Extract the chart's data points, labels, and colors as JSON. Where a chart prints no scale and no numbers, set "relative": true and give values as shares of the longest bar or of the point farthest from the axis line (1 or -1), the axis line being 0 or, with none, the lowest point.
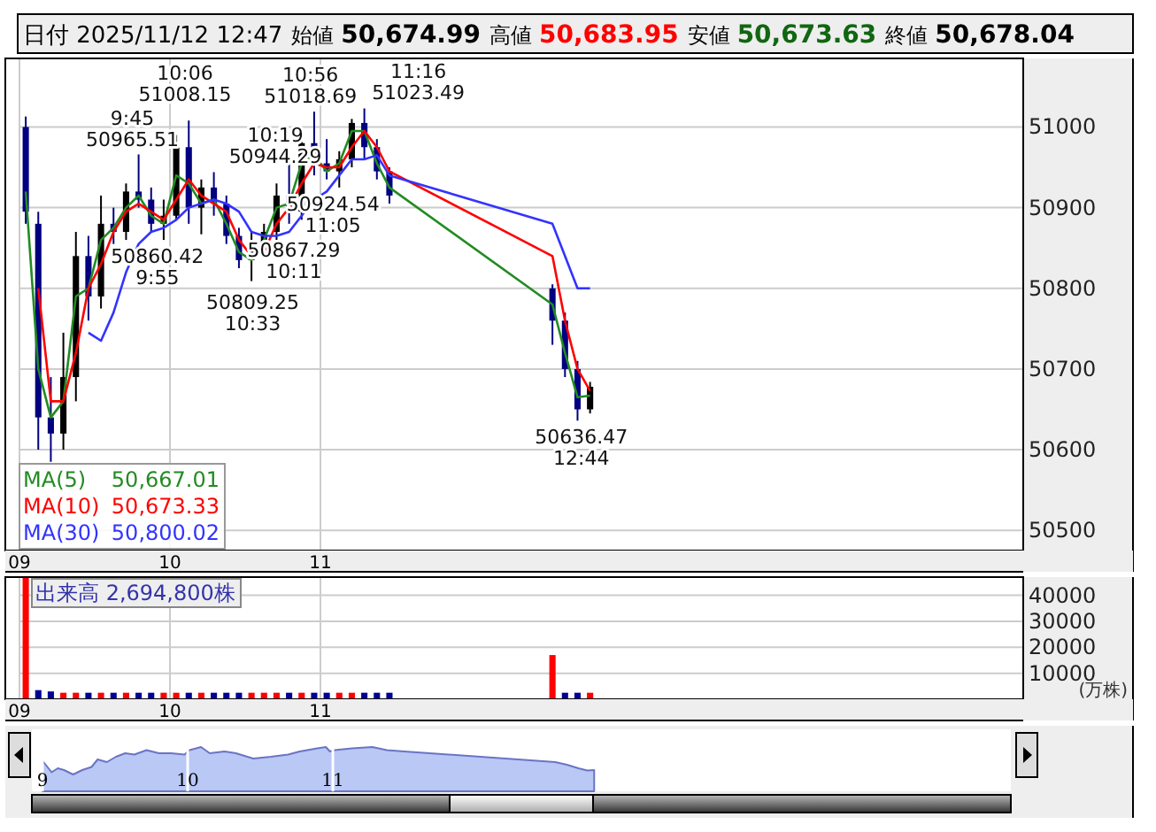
{
  "chart_data": [
    {
      "type": "candlestick",
      "title": "日付 2025/11/12 12:47 始値 50,674.99 高値 50,683.95 安値 50,673.63 終値 50,678.04",
      "x": [
        9.0417,
        9.125,
        9.2083,
        9.2917,
        9.375,
        9.4583,
        9.5417,
        9.625,
        9.7083,
        9.7917,
        9.875,
        9.9583,
        10.0417,
        10.125,
        10.2083,
        10.2917,
        10.375,
        10.4583,
        10.5417,
        10.625,
        10.7083,
        10.7917,
        10.875,
        10.9583,
        11.0417,
        11.125,
        11.2083,
        11.2917,
        11.375,
        11.4583,
        12.5417,
        12.625,
        12.7083,
        12.7917
      ],
      "ohlc": [
        [
          51000,
          51013,
          50880,
          50895
        ],
        [
          50880,
          50895,
          50600,
          50640
        ],
        [
          50640,
          50690,
          50585,
          50620
        ],
        [
          50620,
          50745,
          50600,
          50690
        ],
        [
          50690,
          50870,
          50660,
          50840
        ],
        [
          50840,
          50865,
          50760,
          50790
        ],
        [
          50790,
          50915,
          50775,
          50880
        ],
        [
          50880,
          50900,
          50855,
          50870
        ],
        [
          50870,
          50930,
          50860,
          50920
        ],
        [
          50920,
          50966,
          50900,
          50910
        ],
        [
          50910,
          50925,
          50870,
          50880
        ],
        [
          50880,
          50910,
          50860,
          50890
        ],
        [
          50890,
          50990,
          50885,
          50975
        ],
        [
          50975,
          51008,
          50880,
          50900
        ],
        [
          50900,
          50935,
          50867,
          50925
        ],
        [
          50925,
          50944,
          50890,
          50905
        ],
        [
          50905,
          50915,
          50855,
          50865
        ],
        [
          50865,
          50875,
          50825,
          50835
        ],
        [
          50835,
          50870,
          50809,
          50850
        ],
        [
          50850,
          50880,
          50840,
          50870
        ],
        [
          50870,
          50930,
          50860,
          50915
        ],
        [
          50915,
          50960,
          50880,
          50895
        ],
        [
          50895,
          50990,
          50885,
          50980
        ],
        [
          50980,
          51019,
          50940,
          50955
        ],
        [
          50955,
          50985,
          50935,
          50945
        ],
        [
          50945,
          50970,
          50925,
          50960
        ],
        [
          50960,
          51010,
          50950,
          51005
        ],
        [
          51005,
          51023,
          50960,
          50975
        ],
        [
          50975,
          50985,
          50935,
          50945
        ],
        [
          50945,
          50950,
          50905,
          50915
        ],
        [
          50800,
          50805,
          50730,
          50760
        ],
        [
          50760,
          50770,
          50690,
          50700
        ],
        [
          50700,
          50710,
          50636,
          50650
        ],
        [
          50650,
          50684,
          50645,
          50678
        ]
      ],
      "series": [
        {
          "type": "line",
          "name": "MA(5)",
          "color": "#228b22",
          "values": [
            50920,
            50700,
            50640,
            50660,
            50790,
            50800,
            50860,
            50875,
            50900,
            50915,
            50890,
            50880,
            50940,
            50930,
            50905,
            50910,
            50880,
            50845,
            50835,
            50860,
            50900,
            50905,
            50955,
            50965,
            50945,
            50955,
            50995,
            50995,
            50955,
            50925,
            50780,
            50720,
            50665,
            50667
          ]
        },
        {
          "type": "line",
          "name": "MA(10)",
          "color": "#ff0000",
          "values": [
            null,
            50800,
            50660,
            50660,
            50720,
            50800,
            50830,
            50870,
            50895,
            50905,
            50895,
            50885,
            50910,
            50935,
            50915,
            50905,
            50895,
            50860,
            50840,
            50845,
            50880,
            50900,
            50930,
            50955,
            50950,
            50950,
            50975,
            50995,
            50975,
            50945,
            50840,
            50760,
            50700,
            50673
          ]
        },
        {
          "type": "line",
          "name": "MA(30)",
          "color": "#3333ff",
          "values": [
            null,
            null,
            null,
            null,
            null,
            50745,
            50735,
            50770,
            50820,
            50855,
            50870,
            50875,
            50885,
            50900,
            50905,
            50910,
            50905,
            50895,
            50870,
            50865,
            50865,
            50870,
            50890,
            50910,
            50920,
            50940,
            50960,
            50960,
            50965,
            50940,
            50880,
            50840,
            50800,
            50800
          ]
        }
      ],
      "annotations": [
        "50,667.01",
        "50,673.33",
        "50,800.02",
        {
          "text": "9:45\n50965.51",
          "x": 9.75,
          "y": 50965.51
        },
        {
          "text": "10:06\n51008.15",
          "x": 10.1,
          "y": 51008.15
        },
        {
          "text": "10:19\n50944.29",
          "x": 10.3167,
          "y": 50944.29
        },
        {
          "text": "50860.42\n9:55",
          "x": 9.9167,
          "y": 50860.42
        },
        {
          "text": "50867.29\n10:11",
          "x": 10.1833,
          "y": 50867.29
        },
        {
          "text": "50809.25\n10:33",
          "x": 10.55,
          "y": 50809.25
        },
        {
          "text": "10:56\n51018.69",
          "x": 10.9333,
          "y": 51018.69
        },
        {
          "text": "11:16\n51023.49",
          "x": 11.2667,
          "y": 51023.49
        },
        {
          "text": "50924.54\n11:05",
          "x": 11.0833,
          "y": 50924.54
        },
        {
          "text": "50636.47\n12:44",
          "x": 12.7333,
          "y": 50636.47
        }
      ],
      "xlim": [
        9,
        15.67
      ],
      "ylim": [
        50475,
        51085
      ],
      "xticks": [
        {
          "value": 9,
          "label": "09"
        },
        {
          "value": 10,
          "label": "10"
        },
        {
          "value": 11,
          "label": "11"
        }
      ],
      "yticks": [
        50500,
        50600,
        50700,
        50800,
        50900,
        51000
      ],
      "grid": true,
      "legend": "bottom left"
    },
    {
      "type": "bar",
      "title": "出来高 2,694,800株",
      "ylabel": "(万株)",
      "x": [
        9.0417,
        9.125,
        9.2083,
        9.2917,
        9.375,
        9.4583,
        9.5417,
        9.625,
        9.7083,
        9.7917,
        9.875,
        9.9583,
        10.0417,
        10.125,
        10.2083,
        10.2917,
        10.375,
        10.4583,
        10.5417,
        10.625,
        10.7083,
        10.7917,
        10.875,
        10.9583,
        11.0417,
        11.125,
        11.2083,
        11.2917,
        11.375,
        11.4583,
        12.5417,
        12.625,
        12.7083,
        12.7917
      ],
      "values": [
        47000,
        3500,
        3000,
        2500,
        2500,
        2500,
        2500,
        2500,
        2500,
        2500,
        2500,
        2500,
        2500,
        2500,
        2500,
        2500,
        2500,
        2500,
        2500,
        2500,
        2500,
        2500,
        2500,
        2500,
        2500,
        2500,
        2500,
        2500,
        2500,
        2500,
        17000,
        2500,
        2500,
        2500
      ],
      "colors": [
        "#ff0000",
        "#000099",
        "#000099",
        "#ff0000",
        "#ff0000",
        "#000099",
        "#ff0000",
        "#000099",
        "#ff0000",
        "#000099",
        "#000099",
        "#ff0000",
        "#ff0000",
        "#000099",
        "#ff0000",
        "#000099",
        "#000099",
        "#000099",
        "#ff0000",
        "#ff0000",
        "#ff0000",
        "#000099",
        "#ff0000",
        "#000099",
        "#000099",
        "#ff0000",
        "#ff0000",
        "#000099",
        "#000099",
        "#000099",
        "#ff0000",
        "#000099",
        "#000099",
        "#ff0000"
      ],
      "xlim": [
        9,
        15.67
      ],
      "ylim": [
        0,
        47000
      ],
      "xticks": [
        {
          "value": 9,
          "label": "09"
        },
        {
          "value": 10,
          "label": "10"
        },
        {
          "value": 11,
          "label": "11"
        }
      ],
      "yticks": [
        10000,
        20000,
        30000,
        40000
      ],
      "grid": true
    },
    {
      "type": "area",
      "relative": true,
      "color": "#6b74c4",
      "x": [
        9,
        9.034,
        9.063,
        9.105,
        9.148,
        9.211,
        9.274,
        9.338,
        9.38,
        9.443,
        9.506,
        9.57,
        9.633,
        9.717,
        9.802,
        9.886,
        9.979,
        10.012,
        10.092,
        10.152,
        10.252,
        10.332,
        10.452,
        10.572,
        10.692,
        10.772,
        10.892,
        10.952,
        10.98,
        11.012,
        11.132,
        11.272,
        11.372,
        11.492,
        12.532,
        12.612,
        12.692,
        12.752,
        12.8
      ],
      "values": [
        0.69,
        0.55,
        0.43,
        0.52,
        0.48,
        0.38,
        0.48,
        0.55,
        0.72,
        0.66,
        0.78,
        0.86,
        0.83,
        0.93,
        0.86,
        0.86,
        0.83,
        0.93,
        1,
        0.86,
        0.9,
        0.86,
        0.74,
        0.78,
        0.83,
        0.9,
        0.97,
        1,
        0.9,
        0.93,
        0.97,
        1,
        0.93,
        0.9,
        0.66,
        0.6,
        0.52,
        0.47,
        0.48
      ],
      "xlim": [
        9,
        15.67
      ],
      "xticks": [
        {
          "value": 9,
          "label": "9"
        },
        {
          "value": 10,
          "label": "10"
        },
        {
          "value": 11,
          "label": "11"
        }
      ],
      "grid": "x"
    }
  ]
}
